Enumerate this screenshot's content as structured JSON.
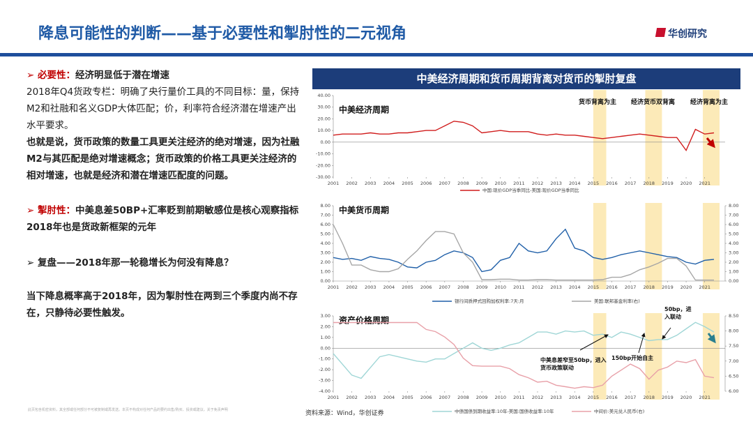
{
  "header": {
    "title": "降息可能性的判断——基于必要性和掣肘性的二元视角",
    "logo": "华创研究"
  },
  "paragraphs": [
    {
      "lead": "➢ 必要性：",
      "text": "经济明显低于潜在增速",
      "bold": true
    },
    {
      "text": "2018年Q4货政专栏：明确了央行量价工具的不同目标：量，保持M2和社融和名义GDP大体匹配；价，利率符合经济潜在增速产出水平要求。",
      "bold": false
    },
    {
      "text": "也就是说，货币政策的数量工具更关注经济的绝对增速，因为社融M2与其匹配是绝对增速概念；货币政策的价格工具更关注经济的相对增速，也就是经济和潜在增速匹配度的问题。",
      "bold": true
    },
    {
      "lead": "➢ 掣肘性：",
      "text": "中美息差50BP+汇率贬到前期敏感位是核心观察指标",
      "bold": true
    },
    {
      "text": "2018年也是货政新框架的元年",
      "bold": true
    },
    {
      "text": "➢ 复盘——2018年那一轮稳增长为何没有降息？",
      "bold": true
    },
    {
      "text": "当下降息概率高于2018年，因为掣肘性在两到三个季度内尚不存在，只静待必要性触发。",
      "bold": true
    }
  ],
  "panel_title": "中美经济周期和货币周期背离对货币的掣肘复盘",
  "highlight_ranges": [
    [
      2015,
      2015.7
    ],
    [
      2017.8,
      2018.7
    ],
    [
      2020.9,
      2021.8
    ]
  ],
  "chart_data": [
    {
      "type": "line",
      "title": "中美经济周期",
      "x": [
        2001,
        2001.5,
        2002,
        2002.5,
        2003,
        2003.5,
        2004,
        2004.5,
        2005,
        2005.5,
        2006,
        2006.5,
        2007,
        2007.5,
        2008,
        2008.5,
        2009,
        2009.5,
        2010,
        2010.5,
        2011,
        2011.5,
        2012,
        2012.5,
        2013,
        2013.5,
        2014,
        2014.5,
        2015,
        2015.5,
        2016,
        2016.5,
        2017,
        2017.5,
        2018,
        2018.5,
        2019,
        2019.5,
        2020,
        2020.5,
        2021,
        2021.5
      ],
      "xlim": [
        2001,
        2022.1
      ],
      "xticks": [
        2001,
        2002,
        2003,
        2004,
        2005,
        2006,
        2007,
        2008,
        2009,
        2010,
        2011,
        2012,
        2013,
        2014,
        2015,
        2016,
        2017,
        2018,
        2019,
        2020,
        2021
      ],
      "ylim": [
        -30,
        40
      ],
      "yticks": [
        {
          "value": 40,
          "label": "40.00"
        },
        {
          "value": 30,
          "label": "30.00"
        },
        {
          "value": 20,
          "label": "20.00"
        },
        {
          "value": 10,
          "label": "10.00"
        },
        {
          "value": 0,
          "label": "0.00"
        },
        {
          "value": -10,
          "label": "-10.00"
        },
        {
          "value": -20,
          "label": "-20.00"
        },
        {
          "value": -30,
          "label": "-30.00"
        }
      ],
      "series": [
        {
          "name": "中国:现价GDP当季同比-美国:现价GDP当季同比",
          "color": "#d01c1c",
          "values": [
            6,
            7,
            7,
            7,
            8,
            7,
            7,
            8,
            8,
            9,
            10,
            10,
            14,
            18,
            17,
            14,
            8,
            9,
            10,
            9,
            9,
            9,
            7,
            6,
            7,
            6,
            6,
            5,
            4,
            3,
            4,
            5,
            6,
            7,
            6,
            5,
            4,
            4,
            -7,
            11,
            7,
            8
          ]
        }
      ],
      "annotations": [
        "货币背离为主",
        "经济货币双背离",
        "经济背离为主"
      ]
    },
    {
      "type": "line",
      "title": "中美货币周期",
      "x": [
        2001,
        2001.5,
        2002,
        2002.5,
        2003,
        2003.5,
        2004,
        2004.5,
        2005,
        2005.5,
        2006,
        2006.5,
        2007,
        2007.5,
        2008,
        2008.5,
        2009,
        2009.5,
        2010,
        2010.5,
        2011,
        2011.5,
        2012,
        2012.5,
        2013,
        2013.5,
        2014,
        2014.5,
        2015,
        2015.5,
        2016,
        2016.5,
        2017,
        2017.5,
        2018,
        2018.5,
        2019,
        2019.5,
        2020,
        2020.5,
        2021,
        2021.5
      ],
      "xlim": [
        2001,
        2022.1
      ],
      "xticks": [
        2001,
        2002,
        2003,
        2004,
        2005,
        2006,
        2007,
        2008,
        2009,
        2010,
        2011,
        2012,
        2013,
        2014,
        2015,
        2016,
        2017,
        2018,
        2019,
        2020,
        2021
      ],
      "ylim": [
        0,
        8
      ],
      "yticks": [
        {
          "value": 8,
          "label": "8.00"
        },
        {
          "value": 7,
          "label": "7.00"
        },
        {
          "value": 6,
          "label": "6.00"
        },
        {
          "value": 5,
          "label": "5.00"
        },
        {
          "value": 4,
          "label": "4.00"
        },
        {
          "value": 3,
          "label": "3.00"
        },
        {
          "value": 2,
          "label": "2.00"
        },
        {
          "value": 1,
          "label": "1.00"
        },
        {
          "value": 0,
          "label": "0.00"
        }
      ],
      "y2lim": [
        0,
        8
      ],
      "y2ticks": [
        {
          "value": 8,
          "label": "8.00"
        },
        {
          "value": 7,
          "label": "7.00"
        },
        {
          "value": 6,
          "label": "6.00"
        },
        {
          "value": 5,
          "label": "5.00"
        },
        {
          "value": 4,
          "label": "4.00"
        },
        {
          "value": 3,
          "label": "3.00"
        },
        {
          "value": 2,
          "label": "2.00"
        },
        {
          "value": 1,
          "label": "1.00"
        },
        {
          "value": 0,
          "label": "0.00"
        }
      ],
      "series": [
        {
          "name": "银行间质押式回购加权利率:7天:月",
          "color": "#1f5fa8",
          "values": [
            2.5,
            2.3,
            2.4,
            2.2,
            2.6,
            2.4,
            2.3,
            2.0,
            1.5,
            1.4,
            2.0,
            2.2,
            2.8,
            3.2,
            3.0,
            2.5,
            1.0,
            1.2,
            2.2,
            2.5,
            4.0,
            3.2,
            3.0,
            3.2,
            4.5,
            5.5,
            3.5,
            3.2,
            2.5,
            2.3,
            2.5,
            2.8,
            3.0,
            3.2,
            3.0,
            2.8,
            2.6,
            2.5,
            2.0,
            1.8,
            2.2,
            2.3
          ]
        },
        {
          "name": "美国:联邦基金利率(右)",
          "color": "#a6a6a6",
          "axis": "y2",
          "values": [
            6.0,
            4.0,
            1.7,
            1.7,
            1.2,
            1.0,
            1.0,
            1.3,
            2.3,
            3.2,
            4.3,
            5.25,
            5.25,
            5.0,
            3.0,
            2.0,
            0.15,
            0.15,
            0.2,
            0.2,
            0.1,
            0.1,
            0.15,
            0.15,
            0.1,
            0.1,
            0.1,
            0.1,
            0.1,
            0.15,
            0.4,
            0.4,
            0.7,
            1.2,
            1.5,
            1.9,
            2.4,
            2.4,
            1.6,
            0.1,
            0.1,
            0.1
          ]
        }
      ]
    },
    {
      "type": "line",
      "title": "资产价格周期",
      "x": [
        2001,
        2001.5,
        2002,
        2002.5,
        2003,
        2003.5,
        2004,
        2004.5,
        2005,
        2005.5,
        2006,
        2006.5,
        2007,
        2007.5,
        2008,
        2008.5,
        2009,
        2009.5,
        2010,
        2010.5,
        2011,
        2011.5,
        2012,
        2012.5,
        2013,
        2013.5,
        2014,
        2014.5,
        2015,
        2015.5,
        2016,
        2016.5,
        2017,
        2017.5,
        2018,
        2018.5,
        2019,
        2019.5,
        2020,
        2020.5,
        2021,
        2021.5
      ],
      "xlim": [
        2001,
        2022.1
      ],
      "xticks": [
        2001,
        2002,
        2003,
        2004,
        2005,
        2006,
        2007,
        2008,
        2009,
        2010,
        2011,
        2012,
        2013,
        2014,
        2015,
        2016,
        2017,
        2018,
        2019,
        2020,
        2021
      ],
      "ylim": [
        -4,
        3
      ],
      "yticks": [
        {
          "value": 3,
          "label": "3.00"
        },
        {
          "value": 2,
          "label": "2.00"
        },
        {
          "value": 1,
          "label": "1.00"
        },
        {
          "value": 0,
          "label": "0.00"
        },
        {
          "value": -1,
          "label": "-1.00"
        },
        {
          "value": -2,
          "label": "-2.00"
        },
        {
          "value": -3,
          "label": "-3.00"
        },
        {
          "value": -4,
          "label": "-4.00"
        }
      ],
      "y2lim": [
        6,
        8.5
      ],
      "y2ticks": [
        {
          "value": 8.5,
          "label": "8.50"
        },
        {
          "value": 8,
          "label": "8.00"
        },
        {
          "value": 7.5,
          "label": "7.50"
        },
        {
          "value": 7,
          "label": "7.00"
        },
        {
          "value": 6.5,
          "label": "6.50"
        },
        {
          "value": 6,
          "label": "6.00"
        }
      ],
      "series": [
        {
          "name": "中债国债到期收益率:10年-美国:国债收益率:10年",
          "color": "#9fd6d6",
          "values": [
            -0.5,
            -1.5,
            -2.5,
            -2.8,
            -1.8,
            -0.8,
            -0.6,
            -0.8,
            -1.0,
            -1.2,
            -1.3,
            -1.0,
            -1.0,
            -0.5,
            0.0,
            0.5,
            0.0,
            -0.2,
            0.0,
            0.3,
            0.5,
            1.0,
            1.5,
            1.5,
            1.3,
            1.6,
            1.5,
            1.6,
            1.2,
            1.3,
            1.0,
            1.5,
            1.3,
            1.0,
            0.7,
            0.8,
            0.8,
            1.2,
            1.8,
            2.4,
            2.0,
            1.5
          ]
        },
        {
          "name": "中间价:美元兑人民币(右)",
          "color": "#e8a0a8",
          "axis": "y2",
          "values": [
            8.28,
            8.28,
            8.28,
            8.28,
            8.28,
            8.28,
            8.28,
            8.28,
            8.28,
            8.28,
            8.05,
            7.98,
            7.8,
            7.55,
            7.1,
            6.85,
            6.83,
            6.83,
            6.83,
            6.75,
            6.55,
            6.45,
            6.3,
            6.33,
            6.2,
            6.15,
            6.1,
            6.15,
            6.12,
            6.2,
            6.5,
            6.7,
            6.9,
            6.75,
            6.4,
            6.7,
            6.8,
            7.0,
            6.95,
            7.05,
            6.5,
            6.45
          ]
        }
      ],
      "annotations": [
        "50bp，进入联动",
        "中美息差窄至50bp，进入货币政策联动",
        "150bp开始自主"
      ]
    }
  ],
  "source": "资料来源：Wind，华创证券",
  "disclaimer": "此页包含机密资料，其全部或任何部分不可被复制或再发送。本页不构成对任何产品的要约出售/购买、投资或建议。关于免责声明"
}
